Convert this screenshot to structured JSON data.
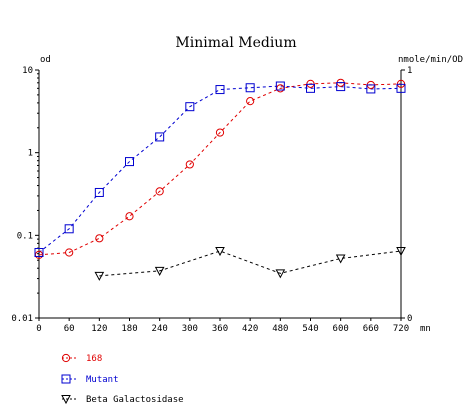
{
  "chart_data": {
    "type": "line",
    "title": "Minimal Medium",
    "xlabel": "",
    "x_unit": "mn",
    "ylabel_left": "od",
    "ylabel_right": "nmole/min/OD",
    "x": [
      0,
      60,
      120,
      180,
      240,
      300,
      360,
      420,
      480,
      540,
      600,
      660,
      720
    ],
    "xlim": [
      0,
      720
    ],
    "ylim_left": [
      0.01,
      10
    ],
    "yscale_left": "log",
    "ylim_right": [
      0,
      1
    ],
    "yscale_right": "linear",
    "left_ticks": [
      "10",
      "1",
      "0.1",
      "0.01"
    ],
    "right_ticks": [
      "1",
      "0"
    ],
    "grid": false,
    "legend_position": "bottom-left",
    "series": [
      {
        "name": "168",
        "axis": "left",
        "color": "#e00000",
        "marker": "circle",
        "x": [
          0,
          60,
          120,
          180,
          240,
          300,
          360,
          420,
          480,
          540,
          600,
          660,
          720
        ],
        "values": [
          0.058,
          0.062,
          0.092,
          0.17,
          0.34,
          0.72,
          1.75,
          4.2,
          6.0,
          6.8,
          7.0,
          6.6,
          6.8
        ]
      },
      {
        "name": "Mutant",
        "axis": "left",
        "color": "#0000d0",
        "marker": "square",
        "x": [
          0,
          60,
          120,
          180,
          240,
          300,
          360,
          420,
          480,
          540,
          600,
          660,
          720
        ],
        "values": [
          0.062,
          0.12,
          0.33,
          0.78,
          1.55,
          3.6,
          5.8,
          6.1,
          6.4,
          6.0,
          6.3,
          5.9,
          6.0
        ]
      },
      {
        "name": "Beta Galactosidase",
        "axis": "right",
        "color": "#000000",
        "marker": "triangle-down",
        "x": [
          120,
          240,
          360,
          480,
          600,
          720
        ],
        "values": [
          0.17,
          0.19,
          0.27,
          0.18,
          0.24,
          0.27
        ]
      }
    ]
  }
}
